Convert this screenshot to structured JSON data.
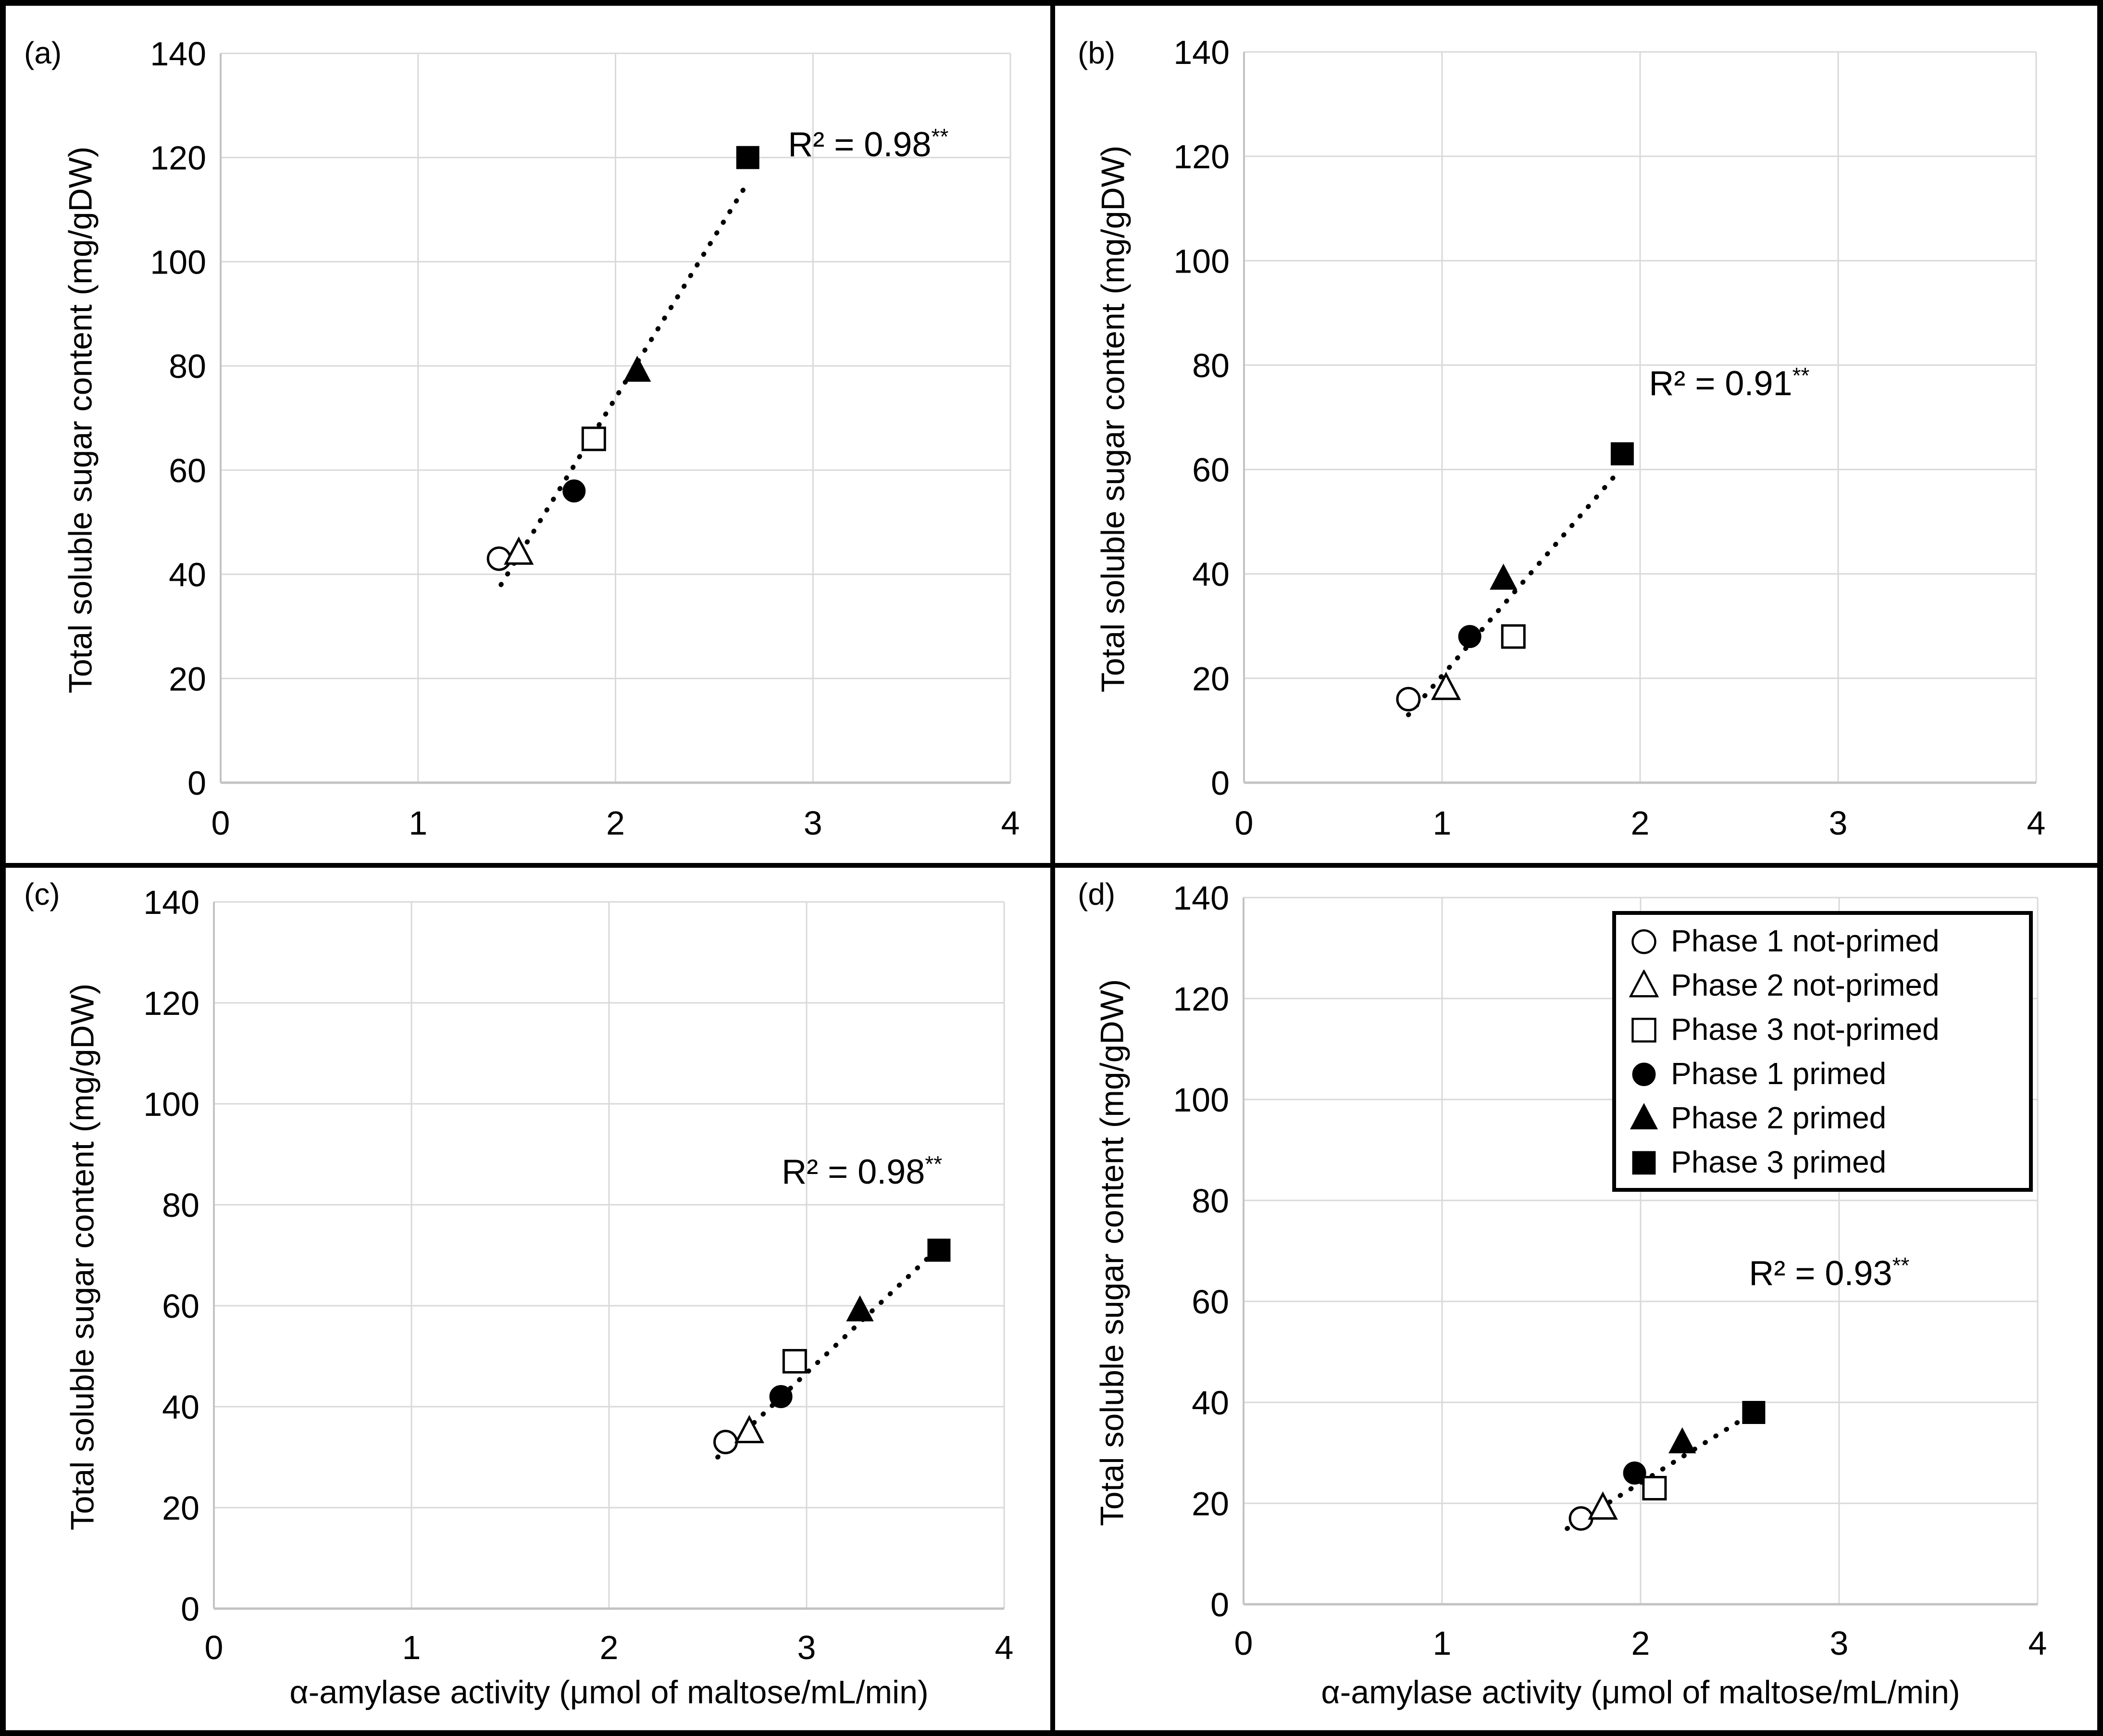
{
  "figure": {
    "colors": {
      "background": "#ffffff",
      "border": "#000000",
      "gridline": "#d9d9d9",
      "axis_line": "#c3c3c3",
      "marker": "#000000",
      "text": "#000000"
    }
  },
  "axes": {
    "x_label": "α-amylase activity (μmol of maltose/mL/min)",
    "y_label": "Total soluble sugar content (mg/gDW)",
    "x_ticks": [
      0,
      1,
      2,
      3,
      4
    ],
    "y_ticks": [
      0,
      20,
      40,
      60,
      80,
      100,
      120,
      140
    ],
    "x_range": [
      0,
      4
    ],
    "y_range": [
      0,
      140
    ],
    "grid": "on"
  },
  "legend": {
    "position": "top-right-of-panel-d",
    "items": [
      {
        "label": "Phase 1 not-primed",
        "marker": "circle",
        "variant": "open"
      },
      {
        "label": "Phase 2 not-primed",
        "marker": "triangle",
        "variant": "open"
      },
      {
        "label": "Phase 3 not-primed",
        "marker": "square",
        "variant": "open"
      },
      {
        "label": "Phase 1 primed",
        "marker": "circle",
        "variant": "filled"
      },
      {
        "label": "Phase 2 primed",
        "marker": "triangle",
        "variant": "filled"
      },
      {
        "label": "Phase 3 primed",
        "marker": "square",
        "variant": "filled"
      }
    ]
  },
  "chart_data": [
    {
      "panel_tag": "(a)",
      "type": "scatter",
      "xlabel": "α-amylase activity (μmol of maltose/mL/min)",
      "ylabel": "Total soluble sugar content (mg/gDW)",
      "xlim": [
        0,
        4
      ],
      "ylim": [
        0,
        140
      ],
      "r2": {
        "text": "R² = 0.98",
        "sig": "**",
        "x": 3.28,
        "y": 121
      },
      "trendline": {
        "style": "dotted",
        "x1": 1.42,
        "y1": 38,
        "x2": 2.65,
        "y2": 114
      },
      "series": [
        {
          "name": "Phase 1 not-primed",
          "marker": "circle",
          "variant": "open",
          "x": 1.41,
          "y": 43
        },
        {
          "name": "Phase 2 not-primed",
          "marker": "triangle",
          "variant": "open",
          "x": 1.51,
          "y": 44
        },
        {
          "name": "Phase 3 not-primed",
          "marker": "square",
          "variant": "open",
          "x": 1.89,
          "y": 66
        },
        {
          "name": "Phase 1 primed",
          "marker": "circle",
          "variant": "filled",
          "x": 1.79,
          "y": 56
        },
        {
          "name": "Phase 2 primed",
          "marker": "triangle",
          "variant": "filled",
          "x": 2.11,
          "y": 79
        },
        {
          "name": "Phase 3 primed",
          "marker": "square",
          "variant": "filled",
          "x": 2.67,
          "y": 120
        }
      ]
    },
    {
      "panel_tag": "(b)",
      "type": "scatter",
      "xlabel": "α-amylase activity (μmol of maltose/mL/min)",
      "ylabel": "Total soluble sugar content (mg/gDW)",
      "xlim": [
        0,
        4
      ],
      "ylim": [
        0,
        140
      ],
      "r2": {
        "text": "R² = 0.91",
        "sig": "**",
        "x": 2.45,
        "y": 75
      },
      "trendline": {
        "style": "dotted",
        "x1": 0.83,
        "y1": 13,
        "x2": 1.9,
        "y2": 60
      },
      "series": [
        {
          "name": "Phase 1 not-primed",
          "marker": "circle",
          "variant": "open",
          "x": 0.83,
          "y": 16
        },
        {
          "name": "Phase 2 not-primed",
          "marker": "triangle",
          "variant": "open",
          "x": 1.02,
          "y": 18
        },
        {
          "name": "Phase 3 not-primed",
          "marker": "square",
          "variant": "open",
          "x": 1.36,
          "y": 28
        },
        {
          "name": "Phase 1 primed",
          "marker": "circle",
          "variant": "filled",
          "x": 1.14,
          "y": 28
        },
        {
          "name": "Phase 2 primed",
          "marker": "triangle",
          "variant": "filled",
          "x": 1.31,
          "y": 39
        },
        {
          "name": "Phase 3 primed",
          "marker": "square",
          "variant": "filled",
          "x": 1.91,
          "y": 63
        }
      ]
    },
    {
      "panel_tag": "(c)",
      "type": "scatter",
      "xlabel": "α-amylase activity (μmol of maltose/mL/min)",
      "ylabel": "Total soluble sugar content (mg/gDW)",
      "xlim": [
        0,
        4
      ],
      "ylim": [
        0,
        140
      ],
      "r2": {
        "text": "R² = 0.98",
        "sig": "**",
        "x": 3.28,
        "y": 85
      },
      "trendline": {
        "style": "dotted",
        "x1": 2.55,
        "y1": 30,
        "x2": 3.71,
        "y2": 73
      },
      "series": [
        {
          "name": "Phase 1 not-primed",
          "marker": "circle",
          "variant": "open",
          "x": 2.59,
          "y": 33
        },
        {
          "name": "Phase 2 not-primed",
          "marker": "triangle",
          "variant": "open",
          "x": 2.71,
          "y": 35
        },
        {
          "name": "Phase 3 not-primed",
          "marker": "square",
          "variant": "open",
          "x": 2.94,
          "y": 49
        },
        {
          "name": "Phase 1 primed",
          "marker": "circle",
          "variant": "filled",
          "x": 2.87,
          "y": 42
        },
        {
          "name": "Phase 2 primed",
          "marker": "triangle",
          "variant": "filled",
          "x": 3.27,
          "y": 59
        },
        {
          "name": "Phase 3 primed",
          "marker": "square",
          "variant": "filled",
          "x": 3.67,
          "y": 71
        }
      ]
    },
    {
      "panel_tag": "(d)",
      "type": "scatter",
      "xlabel": "α-amylase activity (μmol of maltose/mL/min)",
      "ylabel": "Total soluble sugar content (mg/gDW)",
      "xlim": [
        0,
        4
      ],
      "ylim": [
        0,
        140
      ],
      "r2": {
        "text": "R² = 0.93",
        "sig": "**",
        "x": 2.95,
        "y": 64
      },
      "trendline": {
        "style": "dotted",
        "x1": 1.63,
        "y1": 15,
        "x2": 2.61,
        "y2": 39
      },
      "series": [
        {
          "name": "Phase 1 not-primed",
          "marker": "circle",
          "variant": "open",
          "x": 1.7,
          "y": 17
        },
        {
          "name": "Phase 2 not-primed",
          "marker": "triangle",
          "variant": "open",
          "x": 1.81,
          "y": 19
        },
        {
          "name": "Phase 3 not-primed",
          "marker": "square",
          "variant": "open",
          "x": 2.07,
          "y": 23
        },
        {
          "name": "Phase 1 primed",
          "marker": "circle",
          "variant": "filled",
          "x": 1.97,
          "y": 26
        },
        {
          "name": "Phase 2 primed",
          "marker": "triangle",
          "variant": "filled",
          "x": 2.21,
          "y": 32
        },
        {
          "name": "Phase 3 primed",
          "marker": "square",
          "variant": "filled",
          "x": 2.57,
          "y": 38
        }
      ]
    }
  ]
}
